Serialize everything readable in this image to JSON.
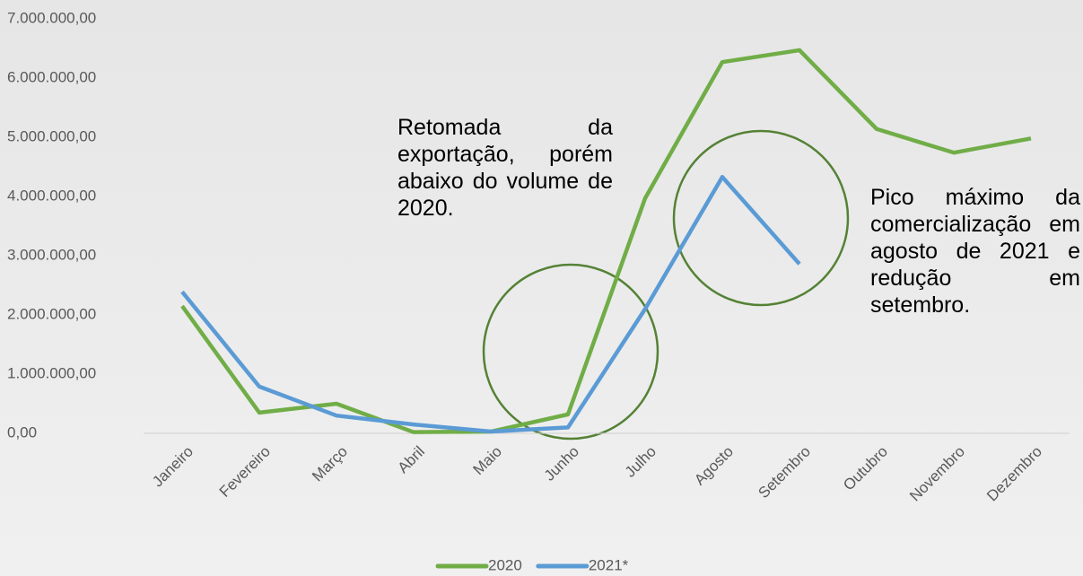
{
  "chart_data": {
    "type": "line",
    "categories": [
      "Janeiro",
      "Fevereiro",
      "Março",
      "Abril",
      "Maio",
      "Junho",
      "Julho",
      "Agosto",
      "Setembro",
      "Outubro",
      "Novembro",
      "Dezembro"
    ],
    "series": [
      {
        "name": "2020",
        "color": "#70ad47",
        "values": [
          2150000,
          350000,
          500000,
          20000,
          30000,
          320000,
          3970000,
          6270000,
          6470000,
          5140000,
          4740000,
          4980000
        ]
      },
      {
        "name": "2021*",
        "color": "#5b9bd5",
        "values": [
          2390000,
          790000,
          300000,
          150000,
          30000,
          100000,
          2100000,
          4330000,
          2860000,
          null,
          null,
          null
        ]
      }
    ],
    "ylim": [
      0,
      7000000
    ],
    "yticks": [
      {
        "value": 0,
        "label": "0,00"
      },
      {
        "value": 1000000,
        "label": "1.000.000,00"
      },
      {
        "value": 2000000,
        "label": "2.000.000,00"
      },
      {
        "value": 3000000,
        "label": "3.000.000,00"
      },
      {
        "value": 4000000,
        "label": "4.000.000,00"
      },
      {
        "value": 5000000,
        "label": "5.000.000,00"
      },
      {
        "value": 6000000,
        "label": "6.000.000,00"
      },
      {
        "value": 7000000,
        "label": "7.000.000,00"
      }
    ],
    "grid": false,
    "legend": "bottom",
    "annotations": [
      "Retomada da exportação, porém abaixo do volume de 2020.",
      "Pico máximo da comercialização em agosto de 2021 e redução em setembro."
    ]
  }
}
